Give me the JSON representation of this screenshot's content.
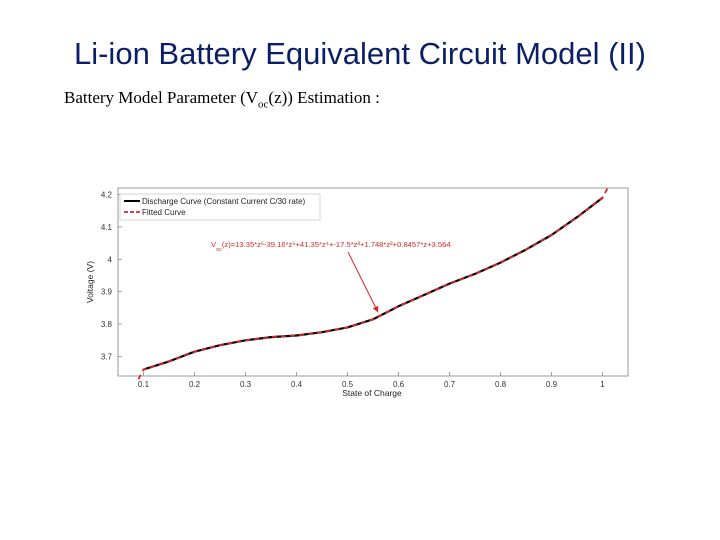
{
  "slide": {
    "title": "Li-ion Battery Equivalent Circuit Model (II)",
    "subtitle_pre": "Battery Model Parameter (V",
    "subtitle_sub": "oc",
    "subtitle_post": "(z)) Estimation :"
  },
  "chart_data": {
    "type": "line",
    "xlabel": "State of Charge",
    "ylabel": "Voltage (V)",
    "xlim": [
      0.05,
      1.05
    ],
    "ylim": [
      3.64,
      4.22
    ],
    "xticks": [
      0.1,
      0.2,
      0.3,
      0.4,
      0.5,
      0.6,
      0.7,
      0.8,
      0.9,
      1
    ],
    "yticks": [
      3.7,
      3.8,
      3.9,
      4,
      4.1,
      4.2
    ],
    "x_tick_labels": [
      "0.1",
      "0.2",
      "0.3",
      "0.4",
      "0.5",
      "0.6",
      "0.7",
      "0.8",
      "0.9",
      "1"
    ],
    "y_tick_labels": [
      "3.7",
      "3.8",
      "3.9",
      "4",
      "4.1",
      "4.2"
    ],
    "grid": false,
    "legend_position": "top-left",
    "series": [
      {
        "name": "Discharge Curve (Constant Current C/30 rate)",
        "color": "#000000",
        "style": "solid",
        "x": [
          0.1,
          0.15,
          0.2,
          0.25,
          0.3,
          0.35,
          0.4,
          0.45,
          0.5,
          0.55,
          0.6,
          0.65,
          0.7,
          0.75,
          0.8,
          0.85,
          0.9,
          0.95,
          1.0
        ],
        "y": [
          3.66,
          3.685,
          3.715,
          3.735,
          3.75,
          3.76,
          3.765,
          3.775,
          3.79,
          3.815,
          3.855,
          3.89,
          3.925,
          3.955,
          3.99,
          4.03,
          4.075,
          4.13,
          4.19
        ]
      },
      {
        "name": "Fitted Curve",
        "color": "#d62728",
        "style": "dashed",
        "x": [
          0.09,
          0.1,
          0.15,
          0.2,
          0.25,
          0.3,
          0.35,
          0.4,
          0.45,
          0.5,
          0.55,
          0.6,
          0.65,
          0.7,
          0.75,
          0.8,
          0.85,
          0.9,
          0.95,
          1.0,
          1.01
        ],
        "y": [
          3.63,
          3.66,
          3.685,
          3.715,
          3.735,
          3.75,
          3.76,
          3.765,
          3.775,
          3.79,
          3.815,
          3.855,
          3.89,
          3.925,
          3.955,
          3.99,
          4.03,
          4.075,
          4.13,
          4.19,
          4.22
        ]
      }
    ],
    "annotation": {
      "text_v": "V",
      "text_sub": "oc",
      "text_rest": "(z)=13.35*z⁶-39.16*z⁵+41.35*z⁴+-17.5*z³+1.748*z²+0.8457*z+3.564",
      "color": "#d62728",
      "arrow_target": [
        0.56,
        3.83
      ]
    }
  }
}
